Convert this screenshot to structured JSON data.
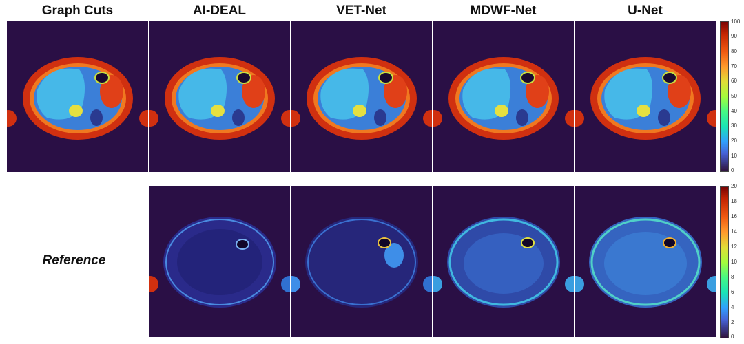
{
  "columns": [
    "Graph Cuts",
    "AI-DEAL",
    "VET-Net",
    "MDWF-Net",
    "U-Net"
  ],
  "row_label": "Reference",
  "colorbar_top": {
    "ticks": [
      "100",
      "90",
      "80",
      "70",
      "60",
      "50",
      "40",
      "30",
      "20",
      "10",
      "0"
    ],
    "min": 0,
    "max": 100
  },
  "colorbar_bottom": {
    "ticks": [
      "20",
      "18",
      "16",
      "14",
      "12",
      "10",
      "8",
      "6",
      "4",
      "2",
      "0"
    ],
    "min": 0,
    "max": 20
  },
  "colors": {
    "background": "#2a0f45",
    "body_ring": "#d03010",
    "liver": "#3fa8e6",
    "organ_red": "#e04018"
  }
}
